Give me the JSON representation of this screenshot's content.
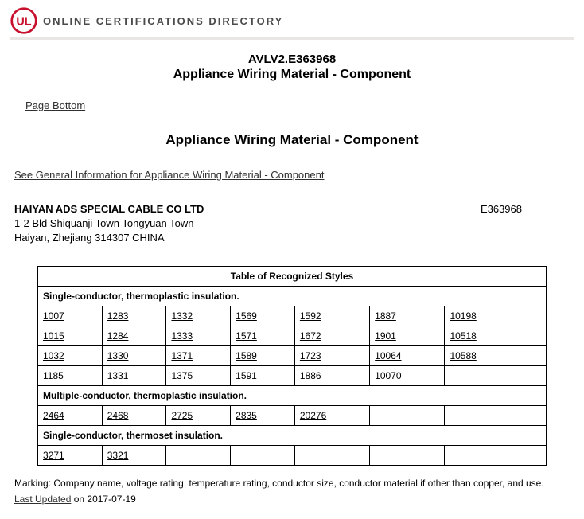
{
  "header": {
    "directory_title": "ONLINE CERTIFICATIONS DIRECTORY"
  },
  "document": {
    "code": "AVLV2.E363968",
    "title_main": "Appliance Wiring Material - Component",
    "page_bottom_link": "Page Bottom",
    "section_title": "Appliance Wiring Material - Component",
    "general_info_link": "See General Information for Appliance Wiring Material - Component"
  },
  "company": {
    "name": "HAIYAN ADS SPECIAL CABLE CO LTD",
    "code": "E363968",
    "addr1": "1-2 Bld Shiquanji Town Tongyuan Town",
    "addr2": "Haiyan, Zhejiang 314307 CHINA"
  },
  "table": {
    "caption": "Table of Recognized Styles",
    "cols": 8,
    "sections": [
      {
        "header": "Single-conductor, thermoplastic insulation.",
        "rows": [
          [
            "1007",
            "1283",
            "1332",
            "1569",
            "1592",
            "1887",
            "10198",
            ""
          ],
          [
            "1015",
            "1284",
            "1333",
            "1571",
            "1672",
            "1901",
            "10518",
            ""
          ],
          [
            "1032",
            "1330",
            "1371",
            "1589",
            "1723",
            "10064",
            "10588",
            ""
          ],
          [
            "1185",
            "1331",
            "1375",
            "1591",
            "1886",
            "10070",
            "",
            ""
          ]
        ]
      },
      {
        "header": "Multiple-conductor, thermoplastic insulation.",
        "rows": [
          [
            "2464",
            "2468",
            "2725",
            "2835",
            "20276",
            "",
            "",
            ""
          ]
        ]
      },
      {
        "header": "Single-conductor, thermoset insulation.",
        "rows": [
          [
            "3271",
            "3321",
            "",
            "",
            "",
            "",
            "",
            ""
          ]
        ]
      }
    ]
  },
  "footer": {
    "marking": "Marking: Company name, voltage rating, temperature rating, conductor size, conductor material if other than copper, and use.",
    "last_updated_label": "Last Updated",
    "last_updated_suffix": " on 2017-07-19"
  }
}
